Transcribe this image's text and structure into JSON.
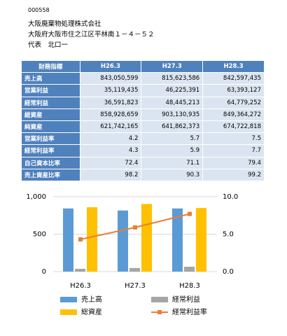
{
  "header": {
    "code": "000558",
    "company": "大阪廃棄物処理株式会社",
    "address": "大阪府大阪市住之江区平林南１－４－５２",
    "representative": "代表　北口一"
  },
  "table": {
    "columns": [
      "財務指標",
      "H26.3",
      "H27.3",
      "H28.3"
    ],
    "rows": [
      [
        "売上高",
        "843,050,599",
        "815,623,586",
        "842,597,435"
      ],
      [
        "営業利益",
        "35,119,435",
        "46,225,391",
        "63,393,127"
      ],
      [
        "経常利益",
        "36,591,823",
        "48,445,213",
        "64,779,252"
      ],
      [
        "総資産",
        "858,928,659",
        "903,130,935",
        "849,364,272"
      ],
      [
        "純資産",
        "621,742,165",
        "641,862,373",
        "674,722,818"
      ],
      [
        "営業利益率",
        "4.2",
        "5.7",
        "7.5"
      ],
      [
        "経常利益率",
        "4.3",
        "5.9",
        "7.7"
      ],
      [
        "自己資本比率",
        "72.4",
        "71.1",
        "79.4"
      ],
      [
        "売上資産比率",
        "98.2",
        "90.3",
        "99.2"
      ]
    ]
  },
  "chart_data": {
    "type": "bar",
    "categories": [
      "H26.3",
      "H27.3",
      "H28.3"
    ],
    "series": [
      {
        "name": "売上高",
        "color": "#5b9bd5",
        "values": [
          843,
          816,
          843
        ]
      },
      {
        "name": "経常利益",
        "color": "#a5a5a5",
        "values": [
          37,
          48,
          65
        ]
      },
      {
        "name": "総資産",
        "color": "#ffc000",
        "values": [
          859,
          903,
          849
        ]
      },
      {
        "name": "経常利益率",
        "color": "#ed7d31",
        "type": "line",
        "axis": "y2",
        "values": [
          4.3,
          5.9,
          7.7
        ]
      }
    ],
    "ylim": [
      0,
      1000
    ],
    "yticks": [
      0,
      500,
      {
        "value": 1000,
        "label": "1,000"
      }
    ],
    "y2lim": [
      0,
      10
    ],
    "y2ticks": [
      {
        "value": 0,
        "label": "0.0"
      },
      {
        "value": 5,
        "label": "5.0"
      },
      {
        "value": 10,
        "label": "10.0"
      }
    ],
    "grid": true
  }
}
